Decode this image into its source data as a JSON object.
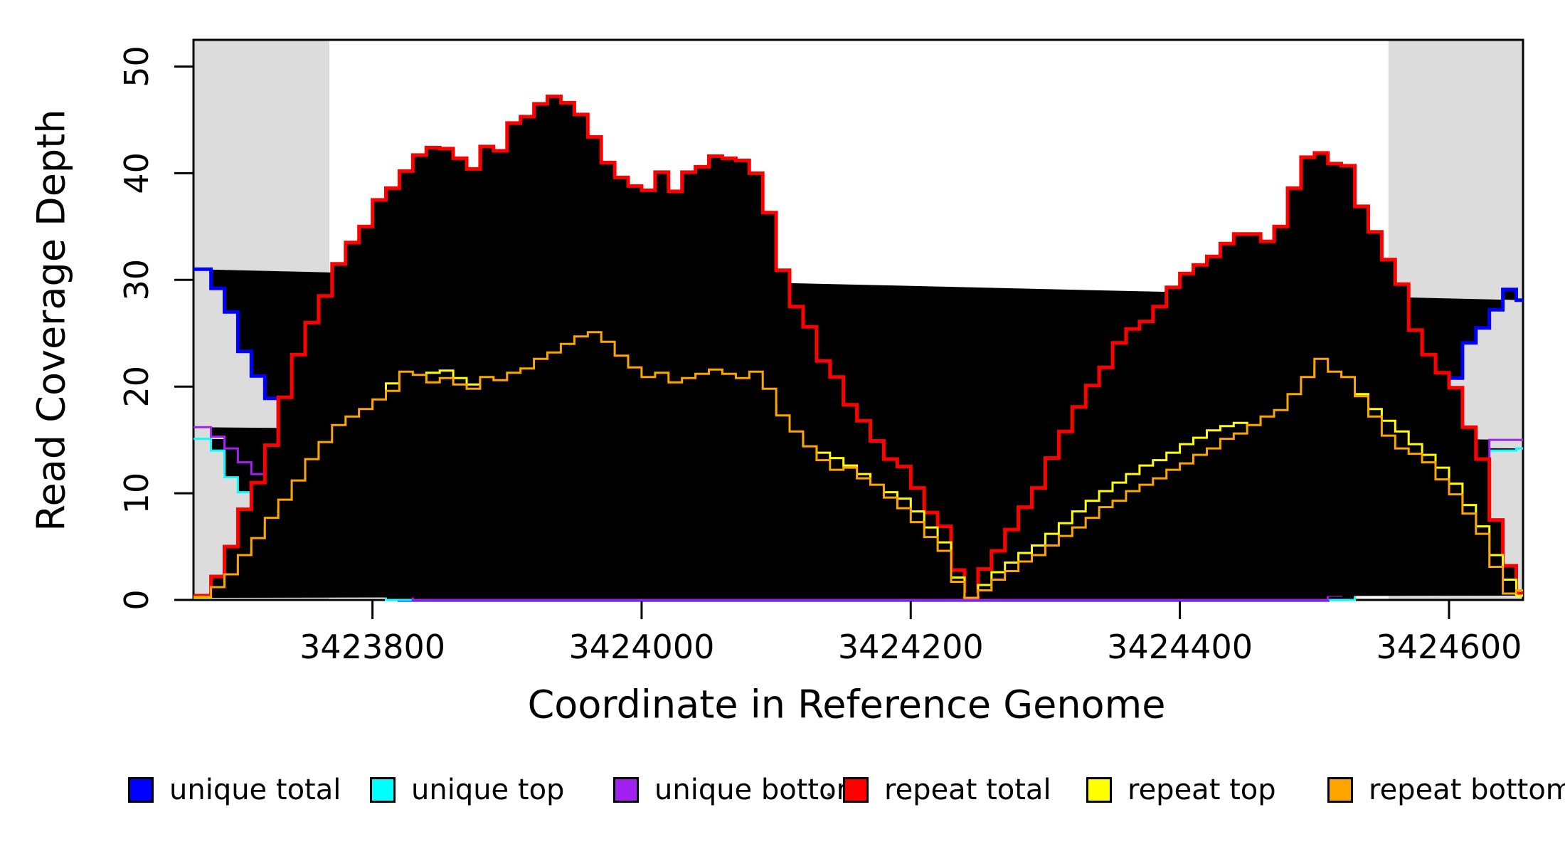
{
  "figure": {
    "background": "#FFFFFF",
    "shade_color": "#DCDCDC",
    "axis_color": "#000000"
  },
  "chart_data": {
    "type": "line",
    "title": "",
    "xlabel": "Coordinate in Reference Genome",
    "ylabel": "Read Coverage Depth",
    "x_range": [
      3423667,
      3424655
    ],
    "y_range": [
      0,
      52.5
    ],
    "x_ticks": [
      3423800,
      3424000,
      3424200,
      3424400,
      3424600
    ],
    "y_ticks": [
      0,
      10,
      20,
      30,
      40,
      50
    ],
    "grid": false,
    "legend_position": "bottom",
    "shaded_x_regions": [
      [
        3423667,
        3423768
      ],
      [
        3424555,
        3424655
      ]
    ],
    "x_start": 3423670,
    "x_step": 10,
    "series": [
      {
        "name": "unique total",
        "color": "#0000FF",
        "line_width": 5,
        "values": [
          31,
          29.2,
          27,
          23.3,
          21,
          18.9,
          16.4,
          14.8,
          13,
          11.5,
          8.5,
          7.6,
          7,
          7,
          2.3,
          0,
          0,
          0,
          0,
          0,
          0,
          0,
          0,
          0,
          0,
          0,
          0,
          0,
          0,
          0,
          0,
          0,
          0,
          0,
          0,
          0,
          0,
          0,
          0,
          0,
          0,
          0,
          0,
          0,
          0,
          0,
          0,
          0,
          0,
          0,
          0,
          0,
          0,
          0,
          0,
          0,
          0,
          0,
          0,
          0,
          0,
          0,
          0,
          0,
          0,
          0,
          0,
          0,
          0,
          0,
          0,
          0,
          0,
          0,
          0,
          0,
          0,
          0,
          0,
          0,
          0,
          0,
          0,
          0,
          0.6,
          1.2,
          2.1,
          4,
          7,
          10,
          13.5,
          15.9,
          18.9,
          20.8,
          24.1,
          25.5,
          27.2,
          29.1,
          28.1
        ]
      },
      {
        "name": "unique top",
        "color": "#00FFFF",
        "line_width": 3,
        "values": [
          15.1,
          14,
          11.5,
          10.1,
          10,
          7.7,
          6.3,
          4.5,
          2.3,
          2.3,
          2.3,
          2.3,
          1,
          0.4,
          0,
          0,
          0,
          0,
          0,
          0,
          0,
          0,
          0,
          0,
          0,
          0,
          0,
          0,
          0,
          0,
          0,
          0,
          0,
          0,
          0,
          0,
          0,
          0,
          0,
          0,
          0,
          0,
          0,
          0,
          0,
          0,
          0,
          0,
          0,
          0,
          0,
          0,
          0,
          0,
          0,
          0,
          0,
          0,
          0,
          0,
          0,
          0,
          0,
          0,
          0,
          0,
          0,
          0,
          0,
          0,
          0,
          0,
          0,
          0,
          0,
          0,
          0,
          0,
          0,
          0,
          0,
          0,
          0,
          0,
          0,
          0,
          0.9,
          1.5,
          4,
          6,
          9,
          9.3,
          10,
          12,
          12.5,
          14,
          14,
          14,
          14.2
        ]
      },
      {
        "name": "unique bottom",
        "color": "#A021F0",
        "line_width": 3,
        "values": [
          16.2,
          15.3,
          14.2,
          12.9,
          11.8,
          10,
          9.9,
          9,
          8,
          7.9,
          7.9,
          6,
          4.9,
          4.7,
          3.2,
          1.3,
          0,
          0,
          0,
          0,
          0,
          0,
          0,
          0,
          0,
          0,
          0,
          0,
          0,
          0,
          0,
          0,
          0,
          0,
          0,
          0,
          0,
          0,
          0,
          0,
          0,
          0,
          0,
          0,
          0,
          0,
          0,
          0,
          0,
          0,
          0,
          0,
          0,
          0,
          0,
          0,
          0,
          0,
          0,
          0,
          0,
          0,
          0,
          0,
          0,
          0,
          0,
          0,
          0,
          0,
          0,
          0,
          0,
          0,
          0,
          0,
          0,
          0,
          0,
          0,
          0,
          0,
          0,
          0,
          0.4,
          1,
          2,
          3,
          4,
          5,
          6.5,
          7.3,
          9,
          10.1,
          12,
          13,
          15,
          15,
          15
        ]
      },
      {
        "name": "repeat total",
        "color": "#FF0000",
        "line_width": 5,
        "values": [
          0.4,
          2.2,
          5,
          8.5,
          11,
          14.5,
          19,
          23,
          26,
          28.5,
          31.5,
          33.5,
          35,
          37.5,
          38.6,
          40.2,
          41.7,
          42.4,
          42.3,
          41.4,
          40.4,
          42.5,
          42.1,
          44.7,
          45.3,
          46.5,
          47.2,
          46.6,
          45.5,
          43.4,
          41,
          39.6,
          38.8,
          38.4,
          40.1,
          38.3,
          40.1,
          40.6,
          41.6,
          41.4,
          41.2,
          40,
          36.3,
          30.9,
          27.5,
          25.6,
          22.4,
          20.9,
          18.3,
          16.8,
          14.9,
          13.2,
          12.5,
          10.5,
          8.2,
          6.9,
          2.8,
          0.3,
          2.9,
          4.6,
          6.6,
          8.7,
          10.5,
          13.3,
          15.8,
          18.1,
          20.1,
          21.8,
          24.1,
          25.4,
          26.1,
          27.5,
          29.3,
          30.6,
          31.4,
          32.2,
          33.4,
          34.3,
          34.3,
          33.6,
          35,
          38.6,
          41.5,
          41.9,
          40.9,
          40.7,
          36.9,
          34.5,
          31.9,
          29.6,
          25.3,
          23,
          21.3,
          19.9,
          16.2,
          13.2,
          7.5,
          3.2,
          0.6
        ]
      },
      {
        "name": "repeat top",
        "color": "#FFFF00",
        "line_width": 3,
        "values": [
          0.2,
          0.8,
          1.8,
          3.3,
          4.8,
          6.9,
          8.5,
          10.2,
          12,
          13.5,
          15,
          16.2,
          17.5,
          18.5,
          20.3,
          21.2,
          20.5,
          21.3,
          21.5,
          20.8,
          20.2,
          20.6,
          20.4,
          20.5,
          20.9,
          21.3,
          21.6,
          22,
          22.4,
          21.9,
          20.6,
          19.8,
          19.6,
          19.5,
          19.8,
          19.2,
          19.4,
          19.6,
          19.8,
          19.5,
          19.3,
          19.4,
          18.3,
          16.3,
          15.4,
          14.2,
          13.8,
          13.3,
          12.6,
          11.8,
          10.5,
          10.1,
          9.5,
          8.3,
          6.8,
          5.4,
          2.1,
          0.3,
          1.4,
          2.6,
          3.5,
          4.4,
          5.1,
          6.2,
          7.2,
          8.3,
          9.3,
          10.2,
          11,
          11.8,
          12.6,
          13.1,
          13.8,
          14.6,
          15.2,
          15.9,
          16.3,
          16.6,
          16.2,
          16.9,
          17.5,
          18.8,
          20.3,
          21.7,
          20.9,
          20.5,
          19.3,
          17.9,
          16.8,
          15.8,
          14.6,
          13.6,
          12.4,
          10.9,
          8.9,
          6.9,
          4.2,
          1.9,
          0.4
        ]
      },
      {
        "name": "repeat bottom",
        "color": "#FFA500",
        "line_width": 3,
        "values": [
          0.3,
          1.2,
          2.4,
          4.2,
          5.8,
          7.7,
          9.4,
          11.2,
          13.2,
          14.8,
          16.4,
          17.2,
          17.9,
          18.8,
          19.6,
          21.4,
          21.1,
          20.4,
          20.8,
          20.2,
          19.8,
          20.9,
          20.6,
          21.3,
          21.7,
          22.6,
          23.2,
          24,
          24.7,
          25.1,
          24.2,
          22.9,
          21.8,
          20.9,
          21.3,
          20.4,
          20.8,
          21.2,
          21.6,
          21.2,
          20.8,
          21.4,
          19.8,
          17.3,
          15.8,
          14.4,
          13.1,
          12.2,
          12.4,
          11.4,
          10.8,
          9.6,
          8.6,
          7.3,
          5.9,
          4.6,
          1.7,
          0.2,
          0.9,
          1.9,
          2.7,
          3.6,
          4.2,
          5.1,
          6,
          6.8,
          7.7,
          8.7,
          9.3,
          10.2,
          10.8,
          11.4,
          12.2,
          12.8,
          13.6,
          14.2,
          15.1,
          15.6,
          16.4,
          17.2,
          17.8,
          19.3,
          20.9,
          22.6,
          21.4,
          20.9,
          19.1,
          17.2,
          15.4,
          14.2,
          13.7,
          12.9,
          11.3,
          9.9,
          8.1,
          6.2,
          3.1,
          0.6,
          0.9
        ]
      }
    ]
  }
}
